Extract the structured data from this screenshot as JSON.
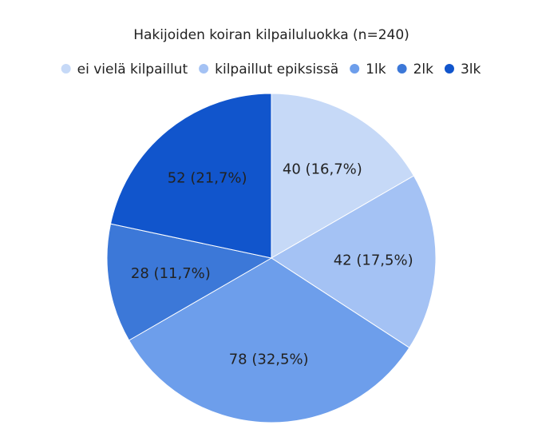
{
  "chart_data": {
    "type": "pie",
    "title": "Hakijoiden koiran kilpailuluokka (n=240)",
    "categories": [
      "ei vielä kilpaillut",
      "kilpaillut epiksissä",
      "1lk",
      "2lk",
      "3lk"
    ],
    "values": [
      40,
      42,
      78,
      28,
      52
    ],
    "value_labels": [
      "40 (16,7%)",
      "42 (17,5%)",
      "78 (32,5%)",
      "28 (11,7%)",
      "52 (21,7%)"
    ],
    "colors": [
      "#c6d9f7",
      "#a4c2f4",
      "#6d9eeb",
      "#3c78d8",
      "#1155cc"
    ],
    "legend": "top"
  }
}
